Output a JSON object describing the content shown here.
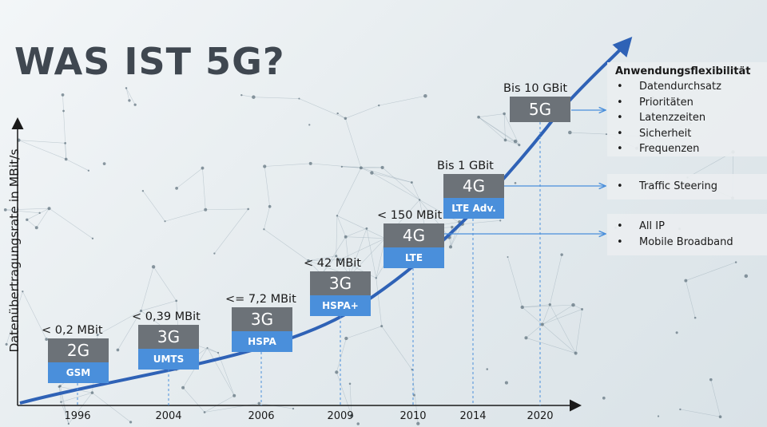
{
  "title": "WAS IST 5G?",
  "y_axis_label": "Datenübertragungsrate in MBit/s",
  "generations": [
    {
      "year": "1996",
      "rate": "< 0,2 MBit",
      "gen": "2G",
      "tech": "GSM"
    },
    {
      "year": "2004",
      "rate": "< 0,39 MBit",
      "gen": "3G",
      "tech": "UMTS"
    },
    {
      "year": "2006",
      "rate": "<= 7,2 MBit",
      "gen": "3G",
      "tech": "HSPA"
    },
    {
      "year": "2009",
      "rate": "< 42 MBit",
      "gen": "3G",
      "tech": "HSPA+"
    },
    {
      "year": "2010",
      "rate": "< 150 MBit",
      "gen": "4G",
      "tech": "LTE"
    },
    {
      "year": "2014",
      "rate": "Bis 1 GBit",
      "gen": "4G",
      "tech": "LTE Adv."
    },
    {
      "year": "2020",
      "rate": "Bis 10 GBit",
      "gen": "5G",
      "tech": ""
    }
  ],
  "info_boxes": [
    {
      "header": "Anwendungsflexibilität",
      "items": [
        "Datendurchsatz",
        "Prioritäten",
        "Latenzzeiten",
        "Sicherheit",
        "Frequenzen"
      ]
    },
    {
      "header": "",
      "items": [
        "Traffic Steering"
      ]
    },
    {
      "header": "",
      "items": [
        "All IP",
        "Mobile Broadband"
      ]
    }
  ],
  "colors": {
    "curve": "#2f62b6",
    "gen_box": "#6c7278",
    "tech_box": "#4a8fdb",
    "axis": "#1a1a1a",
    "connector": "#4a8fdb"
  }
}
